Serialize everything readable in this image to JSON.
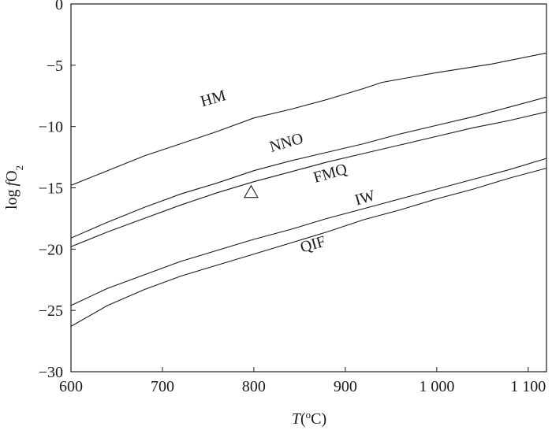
{
  "chart_data": {
    "type": "line",
    "title": "",
    "xlabel": {
      "italic": "T",
      "rest": "(",
      "sup": "o",
      "tail": "C)"
    },
    "ylabel": {
      "pre": "log",
      "italic": "f",
      "mid": "O",
      "sub": "2"
    },
    "xlim": [
      600,
      1120
    ],
    "ylim": [
      -30,
      0
    ],
    "xticks": [
      {
        "value": 600,
        "label": "600"
      },
      {
        "value": 700,
        "label": "700"
      },
      {
        "value": 800,
        "label": "800"
      },
      {
        "value": 900,
        "label": "900"
      },
      {
        "value": 1000,
        "label": "1 000"
      },
      {
        "value": 1100,
        "label": "1 100"
      }
    ],
    "yticks": [
      {
        "value": 0,
        "label": "0"
      },
      {
        "value": -5,
        "label": "−5"
      },
      {
        "value": -10,
        "label": "−10"
      },
      {
        "value": -15,
        "label": "−15"
      },
      {
        "value": -20,
        "label": "−20"
      },
      {
        "value": -25,
        "label": "−25"
      },
      {
        "value": -30,
        "label": "−30"
      }
    ],
    "series": [
      {
        "name": "HM",
        "label_at": [
          757,
          -8.1
        ],
        "label_rot": -16,
        "points": [
          [
            600,
            -14.8
          ],
          [
            640,
            -13.6
          ],
          [
            680,
            -12.4
          ],
          [
            720,
            -11.4
          ],
          [
            760,
            -10.4
          ],
          [
            800,
            -9.3
          ],
          [
            840,
            -8.6
          ],
          [
            880,
            -7.8
          ],
          [
            920,
            -6.9
          ],
          [
            940,
            -6.4
          ],
          [
            1000,
            -5.6
          ],
          [
            1060,
            -4.9
          ],
          [
            1120,
            -4.0
          ]
        ]
      },
      {
        "name": "NNO",
        "label_at": [
          837,
          -11.7
        ],
        "label_rot": -16,
        "points": [
          [
            600,
            -19.1
          ],
          [
            640,
            -17.8
          ],
          [
            680,
            -16.6
          ],
          [
            720,
            -15.5
          ],
          [
            760,
            -14.6
          ],
          [
            800,
            -13.6
          ],
          [
            840,
            -12.8
          ],
          [
            880,
            -12.1
          ],
          [
            920,
            -11.4
          ],
          [
            960,
            -10.6
          ],
          [
            1000,
            -9.9
          ],
          [
            1040,
            -9.2
          ],
          [
            1080,
            -8.4
          ],
          [
            1120,
            -7.6
          ]
        ]
      },
      {
        "name": "FMQ",
        "label_at": [
          885,
          -14.2
        ],
        "label_rot": -16,
        "points": [
          [
            600,
            -19.8
          ],
          [
            640,
            -18.6
          ],
          [
            680,
            -17.5
          ],
          [
            720,
            -16.4
          ],
          [
            760,
            -15.4
          ],
          [
            800,
            -14.5
          ],
          [
            840,
            -13.7
          ],
          [
            880,
            -12.9
          ],
          [
            920,
            -12.2
          ],
          [
            960,
            -11.5
          ],
          [
            1000,
            -10.8
          ],
          [
            1040,
            -10.1
          ],
          [
            1080,
            -9.5
          ],
          [
            1120,
            -8.8
          ]
        ]
      },
      {
        "name": "IW",
        "label_at": [
          923,
          -16.2
        ],
        "label_rot": -16,
        "points": [
          [
            600,
            -24.6
          ],
          [
            640,
            -23.2
          ],
          [
            680,
            -22.1
          ],
          [
            720,
            -21.0
          ],
          [
            760,
            -20.1
          ],
          [
            800,
            -19.2
          ],
          [
            840,
            -18.4
          ],
          [
            880,
            -17.5
          ],
          [
            920,
            -16.7
          ],
          [
            960,
            -15.9
          ],
          [
            1000,
            -15.1
          ],
          [
            1040,
            -14.3
          ],
          [
            1080,
            -13.5
          ],
          [
            1120,
            -12.6
          ]
        ]
      },
      {
        "name": "QIF",
        "label_at": [
          866,
          -20.0
        ],
        "label_rot": -16,
        "points": [
          [
            600,
            -26.3
          ],
          [
            640,
            -24.6
          ],
          [
            680,
            -23.3
          ],
          [
            720,
            -22.2
          ],
          [
            760,
            -21.3
          ],
          [
            800,
            -20.4
          ],
          [
            840,
            -19.5
          ],
          [
            880,
            -18.6
          ],
          [
            920,
            -17.6
          ],
          [
            960,
            -16.8
          ],
          [
            1000,
            -15.9
          ],
          [
            1040,
            -15.1
          ],
          [
            1080,
            -14.2
          ],
          [
            1120,
            -13.4
          ]
        ]
      }
    ],
    "markers": [
      {
        "shape": "triangle",
        "x": 797,
        "y": -15.4
      }
    ],
    "grid": false,
    "legend": "none"
  }
}
